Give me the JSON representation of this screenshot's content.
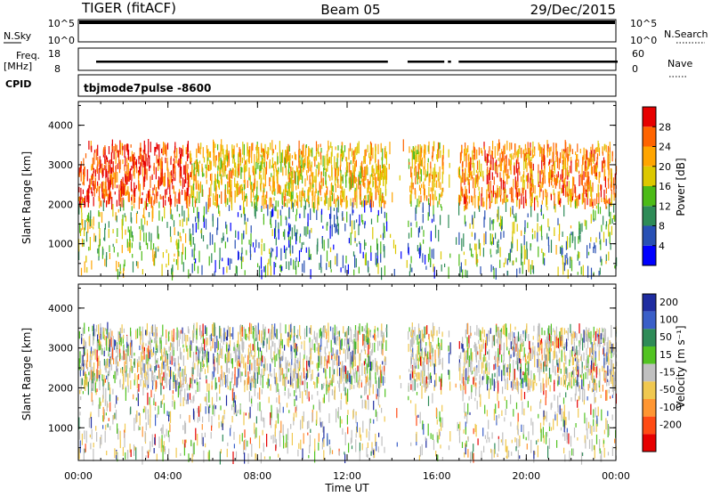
{
  "header": {
    "radar": "TIGER (fitACF)",
    "beam": "Beam 05",
    "date": "29/Dec/2015"
  },
  "aux_panel": {
    "nsky_label": "N.Sky",
    "nsearch_label": "N.Search",
    "noise_ticks_left": [
      "10^5",
      "10^0"
    ],
    "noise_ticks_right": [
      "10^5",
      "10^0"
    ],
    "freq_label": "Freq.",
    "freq_unit": "[MHz]",
    "freq_ticks": [
      "18",
      "8"
    ],
    "nave_label": "Nave",
    "nave_ticks": [
      "60",
      "0"
    ],
    "cpid_label": "CPID",
    "cpid_value": "tbjmode7pulse  -8600"
  },
  "chart_data": [
    {
      "type": "heatmap",
      "title": "",
      "ylabel": "Slant Range [km]",
      "xlabel": "",
      "x_ticks": [
        "00:00",
        "04:00",
        "08:00",
        "12:00",
        "16:00",
        "20:00",
        "00:00"
      ],
      "y_ticks": [
        "1000",
        "2000",
        "3000",
        "4000"
      ],
      "ylim": [
        180,
        4600
      ],
      "colorbar": {
        "label": "Power [dB]",
        "ticks": [
          "4",
          "8",
          "12",
          "16",
          "20",
          "24",
          "28"
        ],
        "colors": [
          "#0000ff",
          "#2850b4",
          "#2e8b57",
          "#4cbb17",
          "#dcc800",
          "#ffa500",
          "#ff6400",
          "#e60000"
        ]
      },
      "data_gaps_hours": [
        [
          13.75,
          14.7
        ],
        [
          16.3,
          16.5
        ],
        [
          16.6,
          16.95
        ]
      ]
    },
    {
      "type": "heatmap",
      "title": "",
      "ylabel": "Slant Range [km]",
      "xlabel": "Time UT",
      "x_ticks": [
        "00:00",
        "04:00",
        "08:00",
        "12:00",
        "16:00",
        "20:00",
        "00:00"
      ],
      "y_ticks": [
        "1000",
        "2000",
        "3000",
        "4000"
      ],
      "ylim": [
        180,
        4600
      ],
      "colorbar": {
        "label": "Velocity [m s⁻¹]",
        "ticks": [
          "200",
          "100",
          "50",
          "15",
          "-15",
          "-50",
          "-100",
          "-200"
        ],
        "colors": [
          "#1e2ca0",
          "#3a5fc8",
          "#2e8b57",
          "#52c322",
          "#c0c0c0",
          "#f0c850",
          "#ff9632",
          "#ff4b14",
          "#e60000"
        ]
      },
      "data_gaps_hours": [
        [
          13.75,
          14.7
        ],
        [
          16.3,
          16.5
        ],
        [
          16.6,
          16.95
        ]
      ]
    }
  ]
}
